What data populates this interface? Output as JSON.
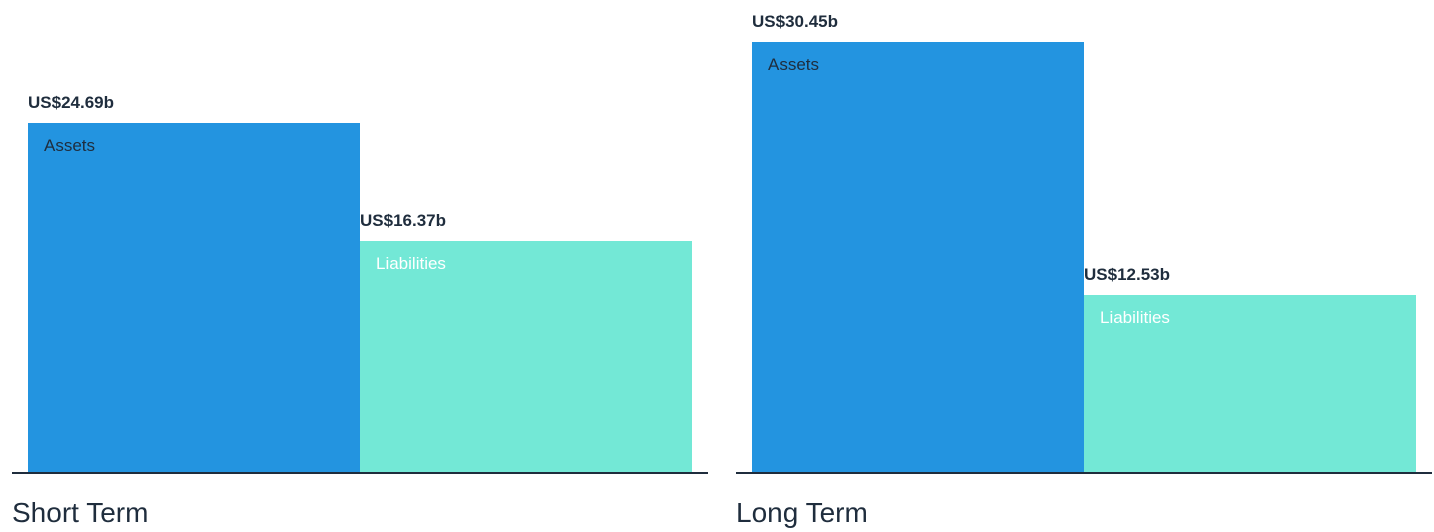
{
  "colors": {
    "assets": "#2394e0",
    "liabilities": "#73e8d6",
    "assets_label": "#1f2d3d",
    "liabilities_label": "#ffffff",
    "axis": "#1f2d3d"
  },
  "chart_data": [
    {
      "type": "bar",
      "title": "Short Term",
      "categories": [
        "Assets",
        "Liabilities"
      ],
      "values": [
        24.69,
        16.37
      ],
      "value_labels": [
        "US$24.69b",
        "US$16.37b"
      ],
      "ylim": [
        0,
        30.45
      ]
    },
    {
      "type": "bar",
      "title": "Long Term",
      "categories": [
        "Assets",
        "Liabilities"
      ],
      "values": [
        30.45,
        12.53
      ],
      "value_labels": [
        "US$30.45b",
        "US$12.53b"
      ],
      "ylim": [
        0,
        30.45
      ]
    }
  ]
}
